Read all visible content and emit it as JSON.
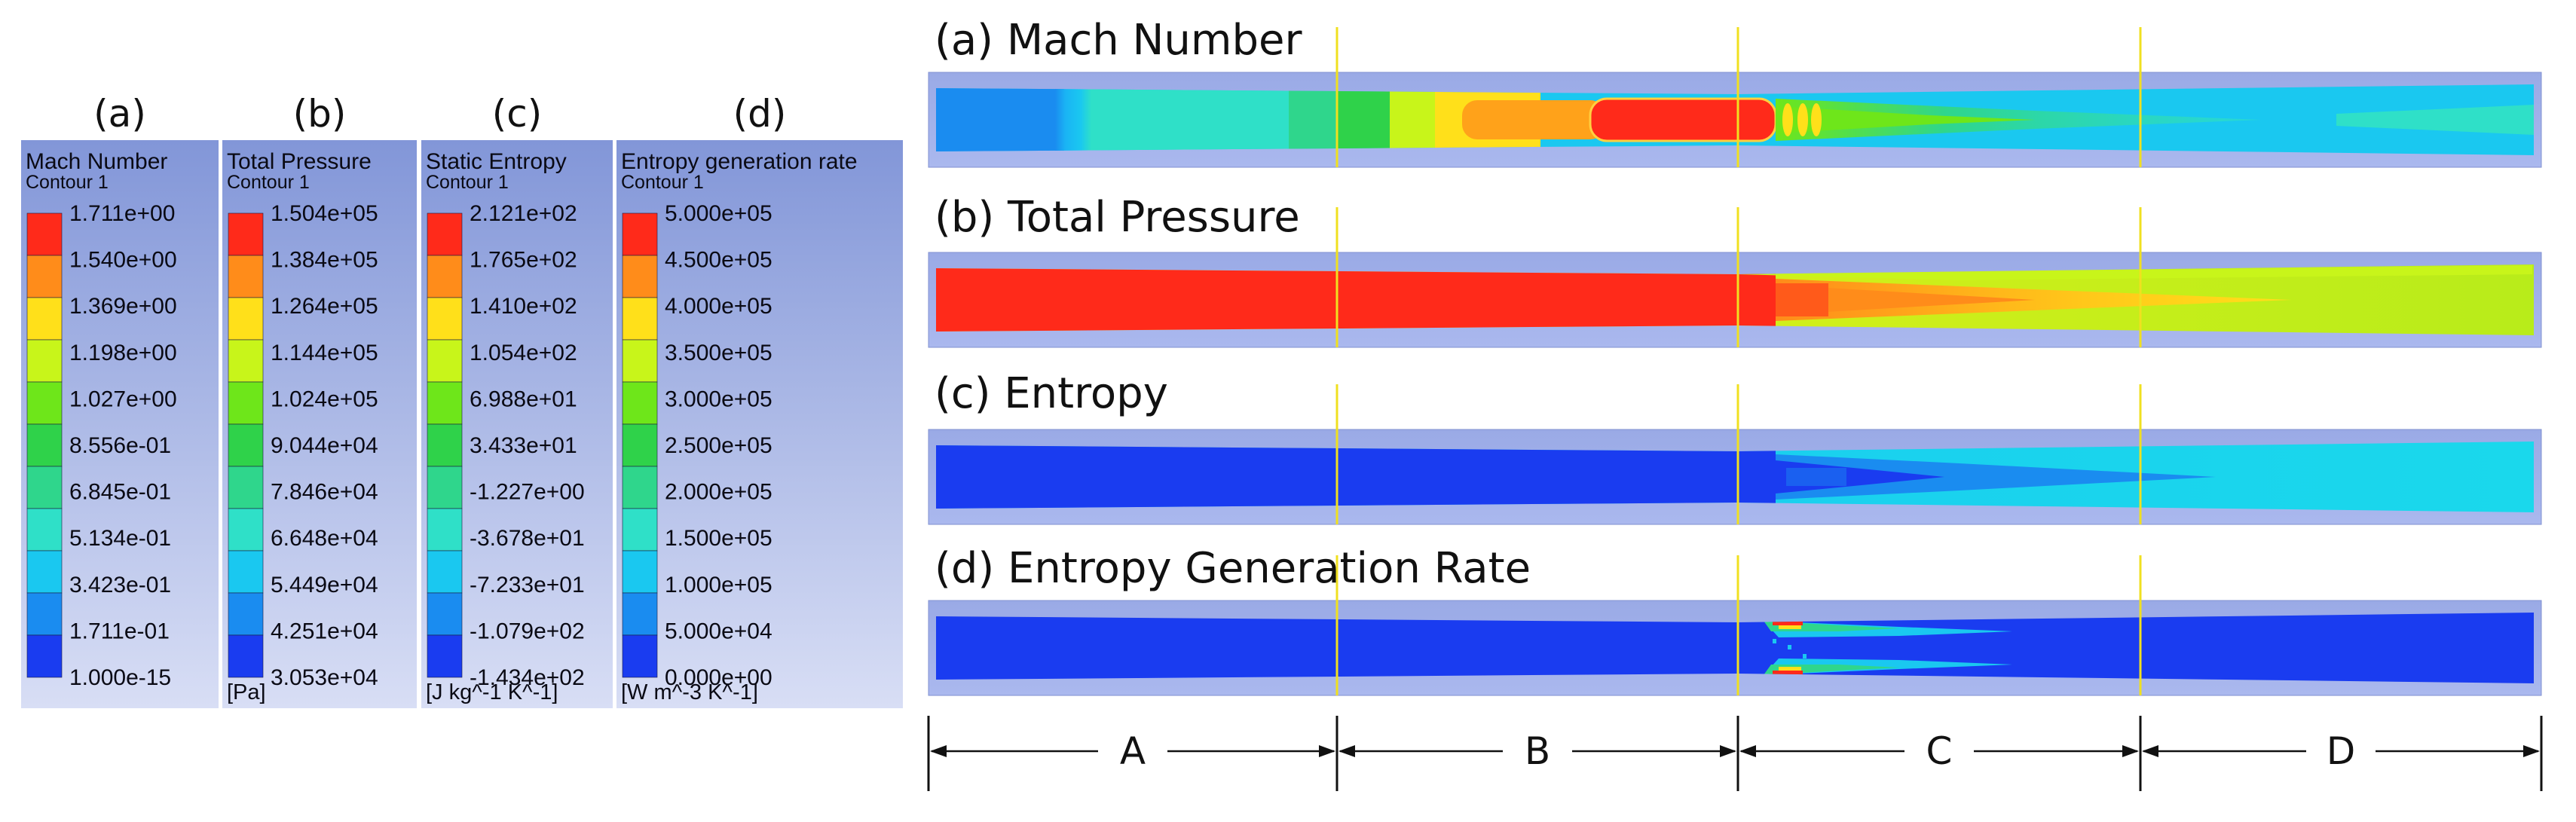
{
  "legends": [
    {
      "letter": "(a)",
      "title": "Mach Number",
      "subtitle": "Contour 1",
      "ticks": [
        "1.711e+00",
        "1.540e+00",
        "1.369e+00",
        "1.198e+00",
        "1.027e+00",
        "8.556e-01",
        "6.845e-01",
        "5.134e-01",
        "3.423e-01",
        "1.711e-01",
        "1.000e-15"
      ],
      "unit": ""
    },
    {
      "letter": "(b)",
      "title": "Total Pressure",
      "subtitle": "Contour 1",
      "ticks": [
        "1.504e+05",
        "1.384e+05",
        "1.264e+05",
        "1.144e+05",
        "1.024e+05",
        "9.044e+04",
        "7.846e+04",
        "6.648e+04",
        "5.449e+04",
        "4.251e+04",
        "3.053e+04"
      ],
      "unit": "[Pa]"
    },
    {
      "letter": "(c)",
      "title": "Static Entropy",
      "subtitle": "Contour 1",
      "ticks": [
        "2.121e+02",
        "1.765e+02",
        "1.410e+02",
        "1.054e+02",
        "6.988e+01",
        "3.433e+01",
        "-1.227e+00",
        "-3.678e+01",
        "-7.233e+01",
        "-1.079e+02",
        "-1.434e+02"
      ],
      "unit": "[J kg^-1 K^-1]"
    },
    {
      "letter": "(d)",
      "title": "Entropy generation rate",
      "subtitle": "Contour 1",
      "ticks": [
        "5.000e+05",
        "4.500e+05",
        "4.000e+05",
        "3.500e+05",
        "3.000e+05",
        "2.500e+05",
        "2.000e+05",
        "1.500e+05",
        "1.000e+05",
        "5.000e+04",
        "0.000e+00"
      ],
      "unit": "[W m^-3 K^-1]"
    }
  ],
  "colormap": [
    "#ff2a1a",
    "#ff8c1a",
    "#ffe01a",
    "#c8f51a",
    "#6ee61a",
    "#2fd24a",
    "#2fd68c",
    "#2fe0c8",
    "#1ac8f0",
    "#1a8cf0",
    "#1a3cf0"
  ],
  "contours": [
    {
      "title": "(a) Mach Number"
    },
    {
      "title": "(b) Total Pressure"
    },
    {
      "title": "(c) Entropy"
    },
    {
      "title": "(d) Entropy Generation Rate"
    }
  ],
  "sections": [
    "A",
    "B",
    "C",
    "D"
  ]
}
